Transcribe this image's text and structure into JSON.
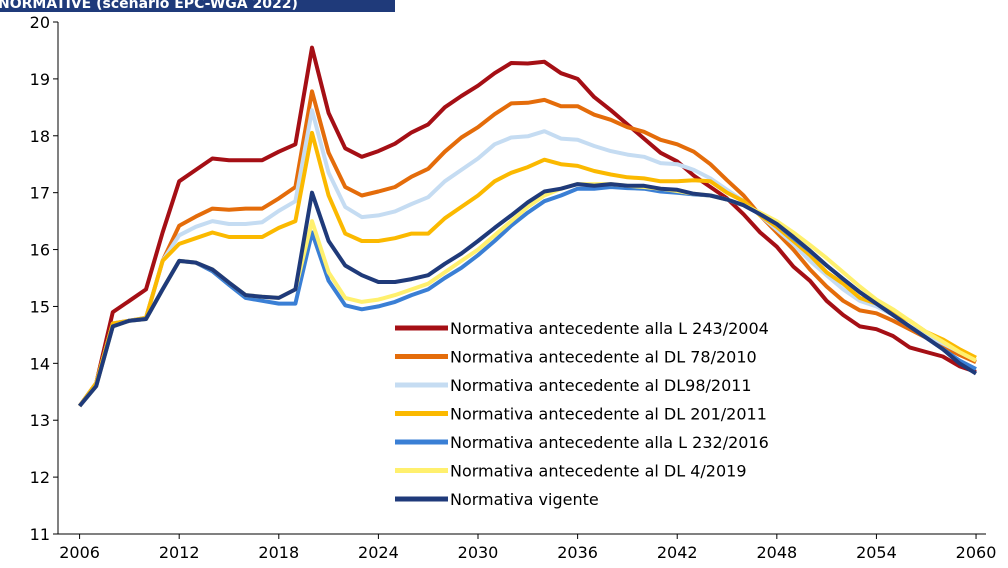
{
  "chart_data": {
    "type": "line",
    "title": "NORMATIVE (scenario EPC-WGA 2022)",
    "x": [
      2006,
      2007,
      2008,
      2009,
      2010,
      2011,
      2012,
      2013,
      2014,
      2015,
      2016,
      2017,
      2018,
      2019,
      2020,
      2021,
      2022,
      2023,
      2024,
      2025,
      2026,
      2027,
      2028,
      2029,
      2030,
      2031,
      2032,
      2033,
      2034,
      2035,
      2036,
      2037,
      2038,
      2039,
      2040,
      2041,
      2042,
      2043,
      2044,
      2045,
      2046,
      2047,
      2048,
      2049,
      2050,
      2051,
      2052,
      2053,
      2054,
      2055,
      2056,
      2057,
      2058,
      2059,
      2060
    ],
    "xlim": [
      2004.7,
      2060.6
    ],
    "xticks": [
      2006,
      2012,
      2018,
      2024,
      2030,
      2036,
      2042,
      2048,
      2054,
      2060
    ],
    "ylim": [
      11,
      20
    ],
    "yticks": [
      11,
      12,
      13,
      14,
      15,
      16,
      17,
      18,
      19,
      20
    ],
    "series": [
      {
        "name": "Normativa antecedente alla L 243/2004",
        "color": "#a50f15",
        "values": [
          13.25,
          13.65,
          14.9,
          15.1,
          15.3,
          16.3,
          17.2,
          17.4,
          17.6,
          17.57,
          17.57,
          17.57,
          17.72,
          17.85,
          19.55,
          18.4,
          17.78,
          17.63,
          17.73,
          17.86,
          18.06,
          18.2,
          18.5,
          18.7,
          18.88,
          19.1,
          19.28,
          19.27,
          19.3,
          19.1,
          19.0,
          18.68,
          18.45,
          18.2,
          17.95,
          17.7,
          17.55,
          17.3,
          17.1,
          16.9,
          16.62,
          16.3,
          16.05,
          15.7,
          15.45,
          15.1,
          14.85,
          14.65,
          14.6,
          14.48,
          14.28,
          14.2,
          14.12,
          13.95,
          13.85
        ]
      },
      {
        "name": "Normativa antecedente al DL 78/2010",
        "color": "#e46c0a",
        "values": [
          13.25,
          13.65,
          14.7,
          14.75,
          14.8,
          15.8,
          16.42,
          16.58,
          16.72,
          16.7,
          16.72,
          16.72,
          16.9,
          17.1,
          18.78,
          17.7,
          17.1,
          16.95,
          17.02,
          17.1,
          17.28,
          17.42,
          17.72,
          17.97,
          18.15,
          18.38,
          18.57,
          18.58,
          18.63,
          18.52,
          18.52,
          18.37,
          18.28,
          18.15,
          18.07,
          17.93,
          17.85,
          17.72,
          17.5,
          17.22,
          16.95,
          16.6,
          16.3,
          16.0,
          15.65,
          15.35,
          15.1,
          14.93,
          14.88,
          14.75,
          14.6,
          14.45,
          14.3,
          14.15,
          14.02
        ]
      },
      {
        "name": "Normativa antecedente al DL98/2011",
        "color": "#c5dcf2",
        "values": [
          13.25,
          13.65,
          14.7,
          14.75,
          14.8,
          15.8,
          16.25,
          16.4,
          16.5,
          16.45,
          16.45,
          16.48,
          16.68,
          16.85,
          18.45,
          17.35,
          16.75,
          16.57,
          16.6,
          16.67,
          16.8,
          16.92,
          17.2,
          17.4,
          17.6,
          17.85,
          17.97,
          17.99,
          18.08,
          17.95,
          17.93,
          17.82,
          17.73,
          17.67,
          17.63,
          17.52,
          17.5,
          17.4,
          17.25,
          17.05,
          16.85,
          16.6,
          16.35,
          16.1,
          15.8,
          15.55,
          15.3,
          15.1,
          15.0,
          14.85,
          14.65,
          14.5,
          14.35,
          14.2,
          14.05
        ]
      },
      {
        "name": "Normativa antecedente al DL 201/2011",
        "color": "#fbb900",
        "values": [
          13.25,
          13.65,
          14.7,
          14.75,
          14.8,
          15.8,
          16.1,
          16.2,
          16.3,
          16.22,
          16.22,
          16.22,
          16.38,
          16.5,
          18.05,
          16.95,
          16.28,
          16.15,
          16.15,
          16.2,
          16.28,
          16.28,
          16.55,
          16.75,
          16.95,
          17.2,
          17.35,
          17.45,
          17.58,
          17.5,
          17.47,
          17.38,
          17.32,
          17.27,
          17.25,
          17.2,
          17.2,
          17.22,
          17.2,
          17.0,
          16.85,
          16.6,
          16.4,
          16.15,
          15.9,
          15.6,
          15.4,
          15.15,
          15.05,
          14.9,
          14.75,
          14.55,
          14.42,
          14.25,
          14.1
        ]
      },
      {
        "name": "Normativa antecedente alla L 232/2016",
        "color": "#3a7fd5",
        "values": [
          13.25,
          13.6,
          14.65,
          14.75,
          14.78,
          15.3,
          15.8,
          15.77,
          15.62,
          15.38,
          15.15,
          15.1,
          15.05,
          15.05,
          16.3,
          15.45,
          15.02,
          14.95,
          15.0,
          15.08,
          15.2,
          15.3,
          15.5,
          15.68,
          15.9,
          16.15,
          16.42,
          16.65,
          16.85,
          16.95,
          17.07,
          17.07,
          17.1,
          17.08,
          17.07,
          17.02,
          17.0,
          16.97,
          16.95,
          16.88,
          16.78,
          16.62,
          16.45,
          16.2,
          15.97,
          15.72,
          15.48,
          15.25,
          15.05,
          14.85,
          14.65,
          14.45,
          14.25,
          14.05,
          13.9
        ]
      },
      {
        "name": "Normativa antecedente al DL 4/2019",
        "color": "#fff06e",
        "values": [
          13.25,
          13.6,
          14.65,
          14.75,
          14.78,
          15.3,
          15.8,
          15.77,
          15.65,
          15.42,
          15.2,
          15.17,
          15.15,
          15.3,
          16.5,
          15.6,
          15.15,
          15.08,
          15.12,
          15.2,
          15.3,
          15.4,
          15.6,
          15.8,
          16.0,
          16.25,
          16.5,
          16.75,
          16.95,
          17.07,
          17.15,
          17.15,
          17.15,
          17.12,
          17.1,
          17.07,
          17.03,
          16.98,
          16.95,
          16.88,
          16.78,
          16.65,
          16.5,
          16.3,
          16.08,
          15.85,
          15.6,
          15.35,
          15.12,
          14.95,
          14.75,
          14.55,
          14.38,
          14.2,
          14.05
        ]
      },
      {
        "name": "Normativa vigente",
        "color": "#1f3a7a",
        "values": [
          13.25,
          13.6,
          14.65,
          14.75,
          14.78,
          15.3,
          15.8,
          15.77,
          15.65,
          15.42,
          15.2,
          15.17,
          15.15,
          15.3,
          17.0,
          16.15,
          15.72,
          15.55,
          15.43,
          15.43,
          15.48,
          15.55,
          15.75,
          15.93,
          16.15,
          16.38,
          16.6,
          16.83,
          17.02,
          17.07,
          17.15,
          17.12,
          17.15,
          17.12,
          17.12,
          17.07,
          17.05,
          16.98,
          16.95,
          16.88,
          16.78,
          16.62,
          16.45,
          16.22,
          15.98,
          15.72,
          15.48,
          15.25,
          15.05,
          14.85,
          14.65,
          14.45,
          14.25,
          14.0,
          13.82
        ]
      }
    ]
  }
}
